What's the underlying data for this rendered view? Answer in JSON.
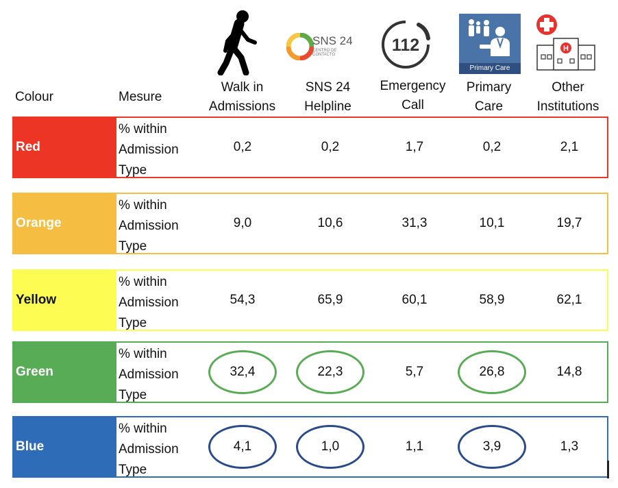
{
  "header": {
    "colour_label": "Colour",
    "measure_label": "Mesure",
    "columns": [
      {
        "line1": "Walk in",
        "line2": "Admissions",
        "icon": "walking-person-icon"
      },
      {
        "line1": "SNS 24",
        "line2": "Helpline",
        "icon": "sns24-logo-icon"
      },
      {
        "line1": "Emergency",
        "line2": "Call",
        "icon": "emergency-112-icon"
      },
      {
        "line1": "Primary",
        "line2": "Care",
        "icon": "primary-care-icon"
      },
      {
        "line1": "Other",
        "line2": "Institutions",
        "icon": "hospital-icon"
      }
    ]
  },
  "logos": {
    "sns_text": "SNS 24",
    "sns_subtext": "CENTRO DE CONTACTO",
    "emergency_text": "112",
    "primary_care_text": "Primary Care",
    "hospital_text": "H"
  },
  "measure_text": {
    "line1": "% within",
    "line2": "Admission",
    "line3": "Type"
  },
  "chart_data": {
    "type": "table",
    "columns": [
      "Walk in Admissions",
      "SNS 24 Helpline",
      "Emergency Call",
      "Primary Care",
      "Other Institutions"
    ],
    "rows": [
      {
        "colour": "Red",
        "hex": "#EC3524",
        "measure": "% within Admission Type",
        "values": [
          "0,2",
          "0,2",
          "1,7",
          "0,2",
          "2,1"
        ],
        "highlighted": [
          false,
          false,
          false,
          false,
          false
        ],
        "circle_color": ""
      },
      {
        "colour": "Orange",
        "hex": "#F5BD42",
        "measure": "% within Admission Type",
        "values": [
          "9,0",
          "10,6",
          "31,3",
          "10,1",
          "19,7"
        ],
        "highlighted": [
          false,
          false,
          false,
          false,
          false
        ],
        "circle_color": ""
      },
      {
        "colour": "Yellow",
        "hex": "#FDFC53",
        "measure": "% within Admission Type",
        "values": [
          "54,3",
          "65,9",
          "60,1",
          "58,9",
          "62,1"
        ],
        "highlighted": [
          false,
          false,
          false,
          false,
          false
        ],
        "circle_color": ""
      },
      {
        "colour": "Green",
        "hex": "#58AC55",
        "measure": "% within Admission Type",
        "values": [
          "32,4",
          "22,3",
          "5,7",
          "26,8",
          "14,8"
        ],
        "highlighted": [
          true,
          true,
          false,
          true,
          false
        ],
        "circle_color": "#58AC55"
      },
      {
        "colour": "Blue",
        "hex": "#2F6CB8",
        "measure": "% within Admission Type",
        "values": [
          "4,1",
          "1,0",
          "1,1",
          "3,9",
          "1,3"
        ],
        "highlighted": [
          true,
          true,
          false,
          true,
          false
        ],
        "circle_color": "#2B4A8A"
      }
    ]
  }
}
